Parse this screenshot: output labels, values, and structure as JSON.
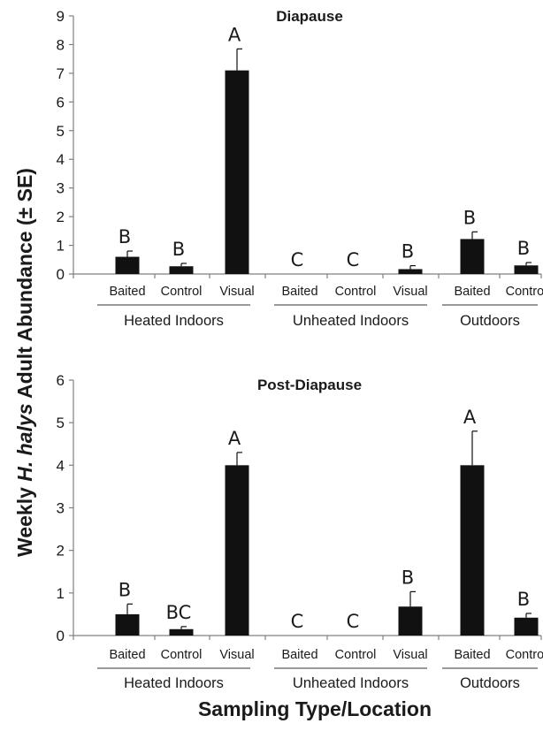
{
  "figure": {
    "ylabel_prefix": "Weekly ",
    "ylabel_italic": "H. halys",
    "ylabel_suffix": " Adult Abundance (± SE)",
    "xlabel": "Sampling Type/Location"
  },
  "chart_data": [
    {
      "type": "bar",
      "title": "Diapause",
      "ylim": [
        0,
        9
      ],
      "yticks": [
        "0",
        "1",
        "2",
        "3",
        "4",
        "5",
        "6",
        "7",
        "8",
        "9"
      ],
      "groups": [
        {
          "label": "Heated Indoors",
          "categories": [
            "Baited",
            "Control",
            "Visual"
          ]
        },
        {
          "label": "Unheated Indoors",
          "categories": [
            "Baited",
            "Control",
            "Visual"
          ]
        },
        {
          "label": "Outdoors",
          "categories": [
            "Baited",
            "Control"
          ]
        }
      ],
      "categories": [
        "Baited",
        "Control",
        "Visual",
        "Baited",
        "Control",
        "Visual",
        "Baited",
        "Control"
      ],
      "values": [
        0.6,
        0.27,
        7.1,
        0,
        0,
        0.17,
        1.22,
        0.3
      ],
      "errors": [
        0.2,
        0.1,
        0.75,
        0,
        0,
        0.12,
        0.25,
        0.1
      ],
      "letters": [
        "B",
        "B",
        "A",
        "C",
        "C",
        "B",
        "B",
        "B"
      ],
      "grid": false
    },
    {
      "type": "bar",
      "title": "Post-Diapause",
      "ylim": [
        0,
        6
      ],
      "yticks": [
        "0",
        "1",
        "2",
        "3",
        "4",
        "5",
        "6"
      ],
      "groups": [
        {
          "label": "Heated Indoors",
          "categories": [
            "Baited",
            "Control",
            "Visual"
          ]
        },
        {
          "label": "Unheated Indoors",
          "categories": [
            "Baited",
            "Control",
            "Visual"
          ]
        },
        {
          "label": "Outdoors",
          "categories": [
            "Baited",
            "Control"
          ]
        }
      ],
      "categories": [
        "Baited",
        "Control",
        "Visual",
        "Baited",
        "Control",
        "Visual",
        "Baited",
        "Control"
      ],
      "values": [
        0.5,
        0.15,
        4.0,
        0,
        0,
        0.68,
        4.0,
        0.42
      ],
      "errors": [
        0.24,
        0.06,
        0.3,
        0,
        0,
        0.35,
        0.8,
        0.1
      ],
      "letters": [
        "B",
        "BC",
        "A",
        "C",
        "C",
        "B",
        "A",
        "B"
      ],
      "grid": false
    }
  ]
}
